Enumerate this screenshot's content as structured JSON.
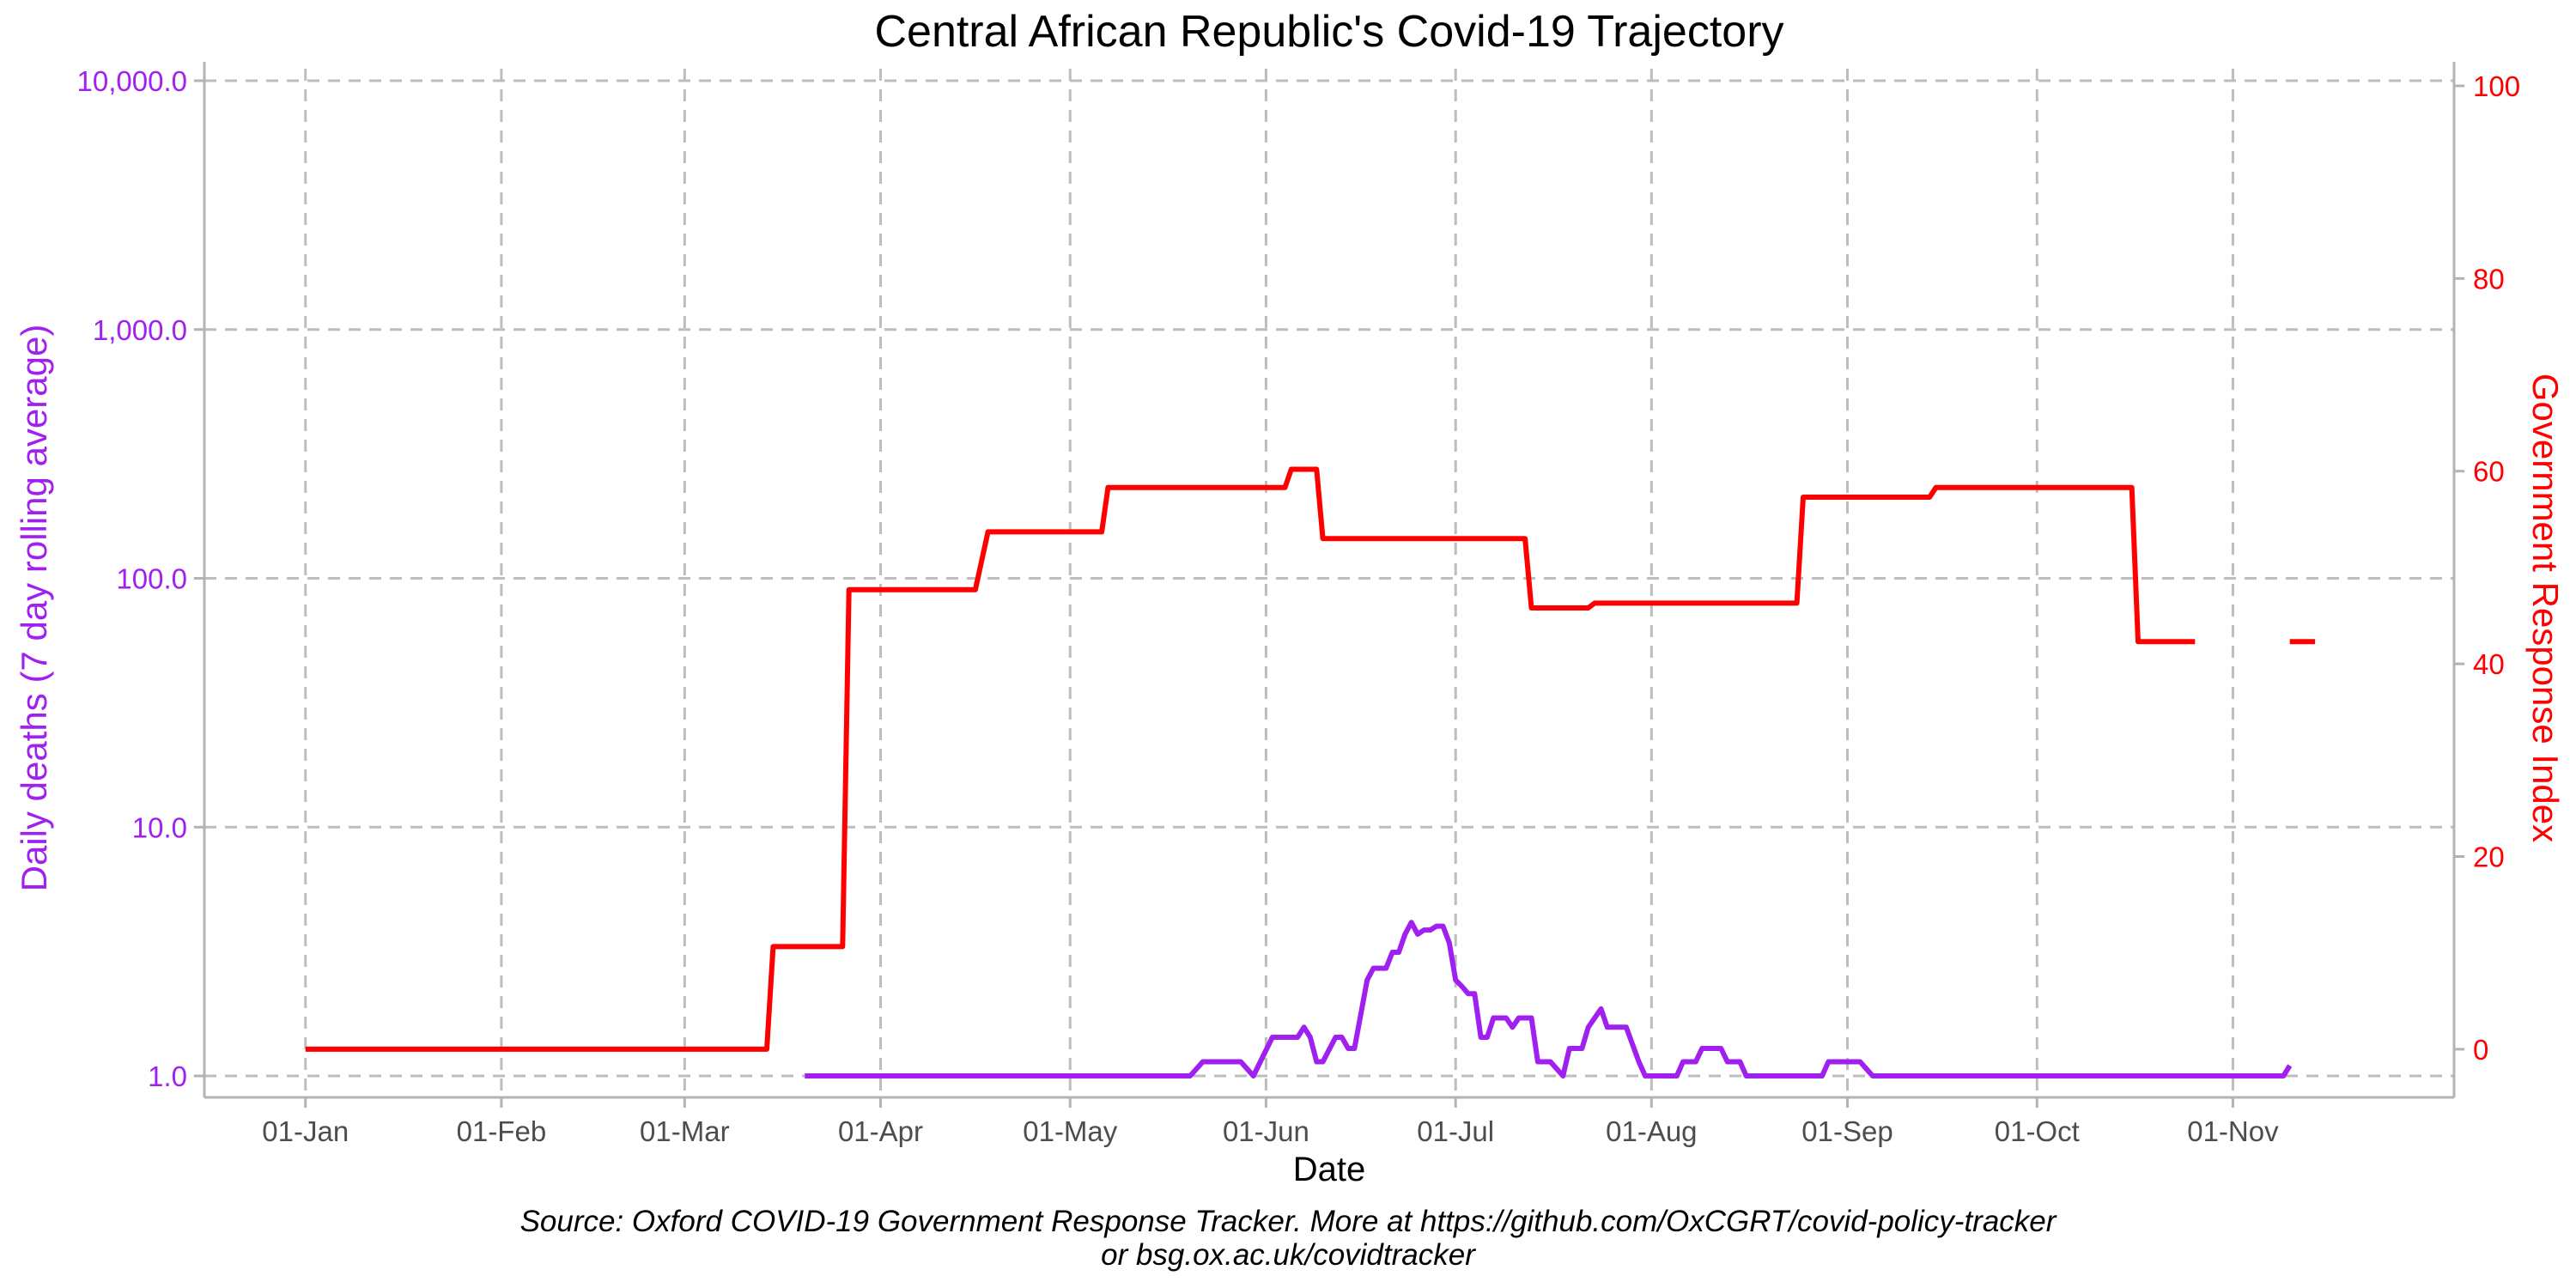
{
  "chart_data": {
    "type": "line",
    "title": "Central African Republic's Covid-19 Trajectory",
    "xlabel": "Date",
    "ylabel_left": "Daily deaths (7 day rolling average)",
    "ylabel_right": "Government Response Index",
    "x_ticks": [
      "01-Jan",
      "01-Feb",
      "01-Mar",
      "01-Apr",
      "01-May",
      "01-Jun",
      "01-Jul",
      "01-Aug",
      "01-Sep",
      "01-Oct",
      "01-Nov"
    ],
    "x_tick_dates": [
      "2020-01-01",
      "2020-02-01",
      "2020-03-01",
      "2020-04-01",
      "2020-05-01",
      "2020-06-01",
      "2020-07-01",
      "2020-08-01",
      "2020-09-01",
      "2020-10-01",
      "2020-11-01"
    ],
    "xlim": [
      "2019-12-16",
      "2020-12-06"
    ],
    "y_left": {
      "scale": "log",
      "lim": [
        0.82,
        11000
      ],
      "ticks": [
        1,
        10,
        100,
        1000,
        10000
      ],
      "tick_labels": [
        "1.0",
        "10.0",
        "100.0",
        "1,000.0",
        "10,000.0"
      ]
    },
    "y_right": {
      "scale": "linear",
      "lim": [
        -5,
        101.6
      ],
      "ticks": [
        0,
        20,
        40,
        60,
        80,
        100
      ],
      "tick_labels": [
        "0",
        "20",
        "40",
        "60",
        "80",
        "100"
      ]
    },
    "grid": true,
    "colors": {
      "deaths": "#a020f0",
      "response": "#ff0000",
      "grid": "#bdbdbd",
      "axis": "#b3b3b3",
      "tick_text": "#4d4d4d"
    },
    "series": [
      {
        "axis": "left",
        "color": "#a020f0",
        "points": [
          [
            "2020-03-20",
            1.0
          ],
          [
            "2020-05-20",
            1.0
          ],
          [
            "2020-05-22",
            1.14
          ],
          [
            "2020-05-28",
            1.14
          ],
          [
            "2020-05-30",
            1.0
          ],
          [
            "2020-06-02",
            1.43
          ],
          [
            "2020-06-06",
            1.43
          ],
          [
            "2020-06-07",
            1.57
          ],
          [
            "2020-06-08",
            1.43
          ],
          [
            "2020-06-09",
            1.14
          ],
          [
            "2020-06-10",
            1.14
          ],
          [
            "2020-06-12",
            1.43
          ],
          [
            "2020-06-13",
            1.43
          ],
          [
            "2020-06-14",
            1.29
          ],
          [
            "2020-06-15",
            1.29
          ],
          [
            "2020-06-17",
            2.43
          ],
          [
            "2020-06-18",
            2.71
          ],
          [
            "2020-06-20",
            2.71
          ],
          [
            "2020-06-21",
            3.14
          ],
          [
            "2020-06-22",
            3.14
          ],
          [
            "2020-06-23",
            3.71
          ],
          [
            "2020-06-24",
            4.14
          ],
          [
            "2020-06-25",
            3.71
          ],
          [
            "2020-06-26",
            3.86
          ],
          [
            "2020-06-27",
            3.86
          ],
          [
            "2020-06-28",
            4.0
          ],
          [
            "2020-06-29",
            4.0
          ],
          [
            "2020-06-30",
            3.43
          ],
          [
            "2020-07-01",
            2.43
          ],
          [
            "2020-07-02",
            2.29
          ],
          [
            "2020-07-03",
            2.14
          ],
          [
            "2020-07-04",
            2.14
          ],
          [
            "2020-07-05",
            1.43
          ],
          [
            "2020-07-06",
            1.43
          ],
          [
            "2020-07-07",
            1.71
          ],
          [
            "2020-07-09",
            1.71
          ],
          [
            "2020-07-10",
            1.57
          ],
          [
            "2020-07-11",
            1.71
          ],
          [
            "2020-07-13",
            1.71
          ],
          [
            "2020-07-14",
            1.14
          ],
          [
            "2020-07-16",
            1.14
          ],
          [
            "2020-07-18",
            1.0
          ],
          [
            "2020-07-19",
            1.29
          ],
          [
            "2020-07-21",
            1.29
          ],
          [
            "2020-07-22",
            1.57
          ],
          [
            "2020-07-24",
            1.86
          ],
          [
            "2020-07-25",
            1.57
          ],
          [
            "2020-07-28",
            1.57
          ],
          [
            "2020-07-30",
            1.14
          ],
          [
            "2020-07-31",
            1.0
          ],
          [
            "2020-08-05",
            1.0
          ],
          [
            "2020-08-06",
            1.14
          ],
          [
            "2020-08-08",
            1.14
          ],
          [
            "2020-08-09",
            1.29
          ],
          [
            "2020-08-12",
            1.29
          ],
          [
            "2020-08-13",
            1.14
          ],
          [
            "2020-08-15",
            1.14
          ],
          [
            "2020-08-16",
            1.0
          ],
          [
            "2020-08-28",
            1.0
          ],
          [
            "2020-08-29",
            1.14
          ],
          [
            "2020-09-03",
            1.14
          ],
          [
            "2020-09-05",
            1.0
          ],
          [
            "2020-11-09",
            1.0
          ],
          [
            "2020-11-10",
            1.1
          ]
        ]
      },
      {
        "axis": "right",
        "color": "#ff0000",
        "points": [
          [
            "2020-01-01",
            0
          ],
          [
            "2020-03-14",
            0
          ],
          [
            "2020-03-15",
            10.65
          ],
          [
            "2020-03-26",
            10.65
          ],
          [
            "2020-03-27",
            47.7
          ],
          [
            "2020-04-16",
            47.7
          ],
          [
            "2020-04-18",
            53.7
          ],
          [
            "2020-05-06",
            53.7
          ],
          [
            "2020-05-07",
            58.3
          ],
          [
            "2020-06-04",
            58.3
          ],
          [
            "2020-06-05",
            60.2
          ],
          [
            "2020-06-09",
            60.2
          ],
          [
            "2020-06-10",
            53.0
          ],
          [
            "2020-07-12",
            53.0
          ],
          [
            "2020-07-13",
            45.8
          ],
          [
            "2020-07-22",
            45.8
          ],
          [
            "2020-07-23",
            46.3
          ],
          [
            "2020-08-24",
            46.3
          ],
          [
            "2020-08-25",
            57.3
          ],
          [
            "2020-09-14",
            57.3
          ],
          [
            "2020-09-15",
            58.3
          ],
          [
            "2020-10-16",
            58.3
          ],
          [
            "2020-10-17",
            42.3
          ],
          [
            "2020-10-26",
            42.3
          ],
          null,
          [
            "2020-11-10",
            42.3
          ],
          [
            "2020-11-14",
            42.3
          ]
        ]
      }
    ]
  },
  "caption": {
    "line1": "Source: Oxford COVID-19 Government Response Tracker. More at https://github.com/OxCGRT/covid-policy-tracker",
    "line2": "or bsg.ox.ac.uk/covidtracker"
  }
}
